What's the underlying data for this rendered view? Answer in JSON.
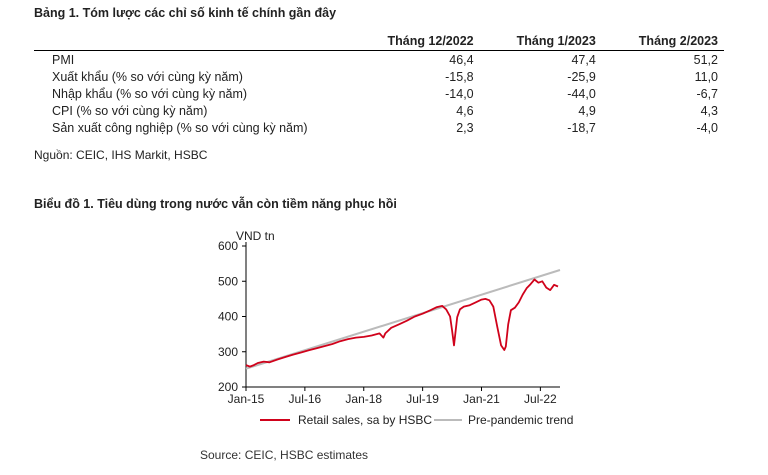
{
  "table": {
    "title": "Bảng 1. Tóm lược các chỉ số kinh tế chính gần đây",
    "headers": [
      "",
      "Tháng 12/2022",
      "Tháng 1/2023",
      "Tháng 2/2023"
    ],
    "rows": [
      {
        "label": "PMI",
        "values": [
          "46,4",
          "47,4",
          "51,2"
        ]
      },
      {
        "label": "Xuất khẩu (% so với cùng kỳ năm)",
        "values": [
          "-15,8",
          "-25,9",
          "11,0"
        ]
      },
      {
        "label": "Nhập khẩu (% so với cùng kỳ năm)",
        "values": [
          "-14,0",
          "-44,0",
          "-6,7"
        ]
      },
      {
        "label": "CPI (% so với cùng kỳ năm)",
        "values": [
          "4,6",
          "4,9",
          "4,3"
        ]
      },
      {
        "label": "Sản xuất công nghiệp (% so với cùng kỳ năm)",
        "values": [
          "2,3",
          "-18,7",
          "-4,0"
        ]
      }
    ],
    "source": "Nguồn: CEIC, IHS Markit, HSBC"
  },
  "chart": {
    "title": "Biểu đồ 1. Tiêu dùng trong nước vẫn còn tiềm năng phục hồi",
    "source": "Source: CEIC, HSBC estimates"
  },
  "chart_data": {
    "type": "line",
    "ylabel": "VND tn",
    "ylim": [
      200,
      600
    ],
    "yticks": [
      200,
      300,
      400,
      500,
      600
    ],
    "xlim": [
      2015.0,
      2023.0
    ],
    "xticks": [
      {
        "label": "Jan-15",
        "value": 2015.0
      },
      {
        "label": "Jul-16",
        "value": 2016.5
      },
      {
        "label": "Jan-18",
        "value": 2018.0
      },
      {
        "label": "Jul-19",
        "value": 2019.5
      },
      {
        "label": "Jan-21",
        "value": 2021.0
      },
      {
        "label": "Jul-22",
        "value": 2022.5
      }
    ],
    "grid": false,
    "legend": "bottom",
    "series": [
      {
        "name": "Retail sales, sa by HSBC",
        "color": "#d0021b",
        "x": [
          2015.0,
          2015.1,
          2015.2,
          2015.3,
          2015.45,
          2015.6,
          2015.8,
          2016.0,
          2016.2,
          2016.4,
          2016.6,
          2016.8,
          2017.0,
          2017.2,
          2017.4,
          2017.6,
          2017.8,
          2018.0,
          2018.2,
          2018.4,
          2018.5,
          2018.55,
          2018.7,
          2018.9,
          2019.1,
          2019.3,
          2019.5,
          2019.7,
          2019.85,
          2020.0,
          2020.1,
          2020.2,
          2020.25,
          2020.3,
          2020.38,
          2020.45,
          2020.55,
          2020.7,
          2020.85,
          2021.0,
          2021.1,
          2021.2,
          2021.3,
          2021.4,
          2021.5,
          2021.58,
          2021.62,
          2021.68,
          2021.75,
          2021.85,
          2021.95,
          2022.05,
          2022.15,
          2022.25,
          2022.35,
          2022.45,
          2022.55,
          2022.65,
          2022.75,
          2022.85,
          2022.95
        ],
        "values": [
          262,
          258,
          262,
          268,
          272,
          270,
          278,
          285,
          292,
          298,
          304,
          310,
          316,
          322,
          330,
          336,
          340,
          342,
          346,
          352,
          340,
          352,
          368,
          378,
          388,
          400,
          408,
          418,
          426,
          430,
          420,
          400,
          360,
          318,
          398,
          420,
          428,
          432,
          440,
          448,
          450,
          446,
          428,
          372,
          318,
          305,
          315,
          378,
          418,
          425,
          440,
          462,
          480,
          492,
          505,
          496,
          500,
          482,
          475,
          490,
          485
        ]
      },
      {
        "name": "Pre-pandemic trend",
        "color": "#bbbbbb",
        "x": [
          2015.0,
          2023.0
        ],
        "values": [
          252,
          532
        ]
      }
    ]
  }
}
